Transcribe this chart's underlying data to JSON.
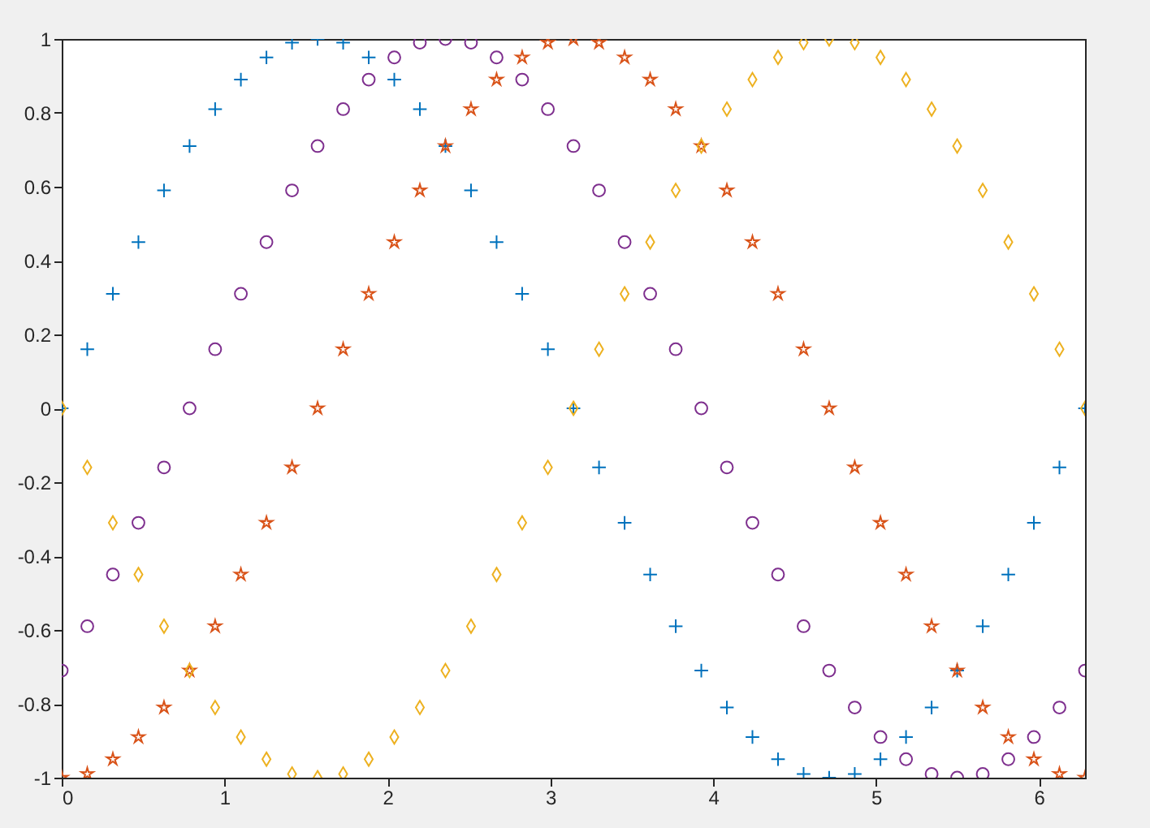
{
  "chart_data": {
    "type": "scatter",
    "x": [
      0,
      0.157,
      0.314,
      0.471,
      0.628,
      0.785,
      0.942,
      1.1,
      1.257,
      1.414,
      1.571,
      1.728,
      1.885,
      2.042,
      2.199,
      2.356,
      2.513,
      2.67,
      2.827,
      2.985,
      3.142,
      3.299,
      3.456,
      3.613,
      3.77,
      3.927,
      4.084,
      4.241,
      4.398,
      4.555,
      4.712,
      4.869,
      5.027,
      5.184,
      5.341,
      5.498,
      5.655,
      5.812,
      5.969,
      6.126,
      6.283
    ],
    "series": [
      {
        "color": "#0072bd",
        "marker": "cross",
        "values": [
          0,
          0.16,
          0.31,
          0.45,
          0.59,
          0.71,
          0.81,
          0.89,
          0.95,
          0.99,
          1,
          0.99,
          0.95,
          0.89,
          0.81,
          0.71,
          0.59,
          0.45,
          0.31,
          0.16,
          0,
          -0.16,
          -0.31,
          -0.45,
          -0.59,
          -0.71,
          -0.81,
          -0.89,
          -0.95,
          -0.99,
          -1,
          -0.99,
          -0.95,
          -0.89,
          -0.81,
          -0.71,
          -0.59,
          -0.45,
          -0.31,
          -0.16,
          0
        ]
      },
      {
        "color": "#d95319",
        "marker": "star",
        "values": [
          -1,
          -0.99,
          -0.95,
          -0.89,
          -0.81,
          -0.71,
          -0.59,
          -0.45,
          -0.31,
          -0.16,
          0,
          0.16,
          0.31,
          0.45,
          0.59,
          0.71,
          0.81,
          0.89,
          0.95,
          0.99,
          1,
          0.99,
          0.95,
          0.89,
          0.81,
          0.71,
          0.59,
          0.45,
          0.31,
          0.16,
          0,
          -0.16,
          -0.31,
          -0.45,
          -0.59,
          -0.71,
          -0.81,
          -0.89,
          -0.95,
          -0.99,
          -1
        ]
      },
      {
        "color": "#edb120",
        "marker": "diamond",
        "values": [
          0,
          -0.16,
          -0.31,
          -0.45,
          -0.59,
          -0.71,
          -0.81,
          -0.89,
          -0.95,
          -0.99,
          -1,
          -0.99,
          -0.95,
          -0.89,
          -0.81,
          -0.71,
          -0.59,
          -0.45,
          -0.31,
          -0.16,
          0,
          0.16,
          0.31,
          0.45,
          0.59,
          0.71,
          0.81,
          0.89,
          0.95,
          0.99,
          1,
          0.99,
          0.95,
          0.89,
          0.81,
          0.71,
          0.59,
          0.45,
          0.31,
          0.16,
          0
        ]
      },
      {
        "color": "#7e2f8e",
        "marker": "circle",
        "values": [
          -0.71,
          -0.59,
          -0.45,
          -0.31,
          -0.16,
          0,
          0.16,
          0.31,
          0.45,
          0.59,
          0.71,
          0.81,
          0.89,
          0.95,
          0.99,
          1,
          0.99,
          0.95,
          0.89,
          0.81,
          0.71,
          0.59,
          0.45,
          0.31,
          0.16,
          0,
          -0.16,
          -0.31,
          -0.45,
          -0.59,
          -0.71,
          -0.81,
          -0.89,
          -0.95,
          -0.99,
          -1,
          -0.99,
          -0.95,
          -0.89,
          -0.81,
          -0.71
        ]
      }
    ],
    "xlim": [
      0,
      6.283
    ],
    "xticks": [
      0,
      1,
      2,
      3,
      4,
      5,
      6
    ],
    "ylim": [
      -1,
      1
    ],
    "yticks": [
      -1,
      -0.8,
      -0.6,
      -0.4,
      -0.2,
      0,
      0.2,
      0.4,
      0.6,
      0.8,
      1
    ],
    "grid": false
  }
}
